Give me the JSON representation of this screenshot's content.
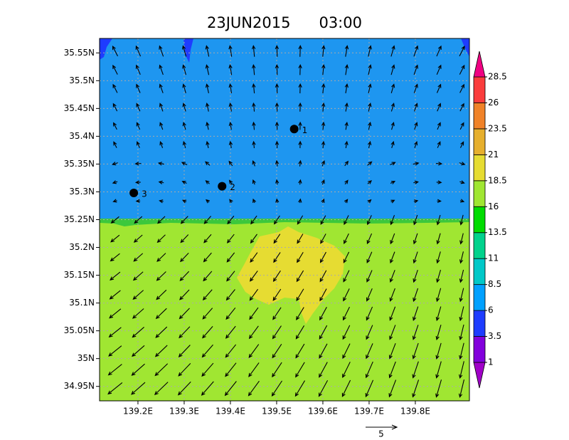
{
  "chart_data": {
    "type": "map",
    "title_date": "23JUN2015",
    "title_time": "03:00",
    "xlim": [
      139.117,
      139.917
    ],
    "ylim": [
      34.924,
      35.576
    ],
    "xticks": [
      {
        "value": 139.2,
        "label": "139.2E"
      },
      {
        "value": 139.3,
        "label": "139.3E"
      },
      {
        "value": 139.4,
        "label": "139.4E"
      },
      {
        "value": 139.5,
        "label": "139.5E"
      },
      {
        "value": 139.6,
        "label": "139.6E"
      },
      {
        "value": 139.7,
        "label": "139.7E"
      },
      {
        "value": 139.8,
        "label": "139.8E"
      }
    ],
    "yticks": [
      {
        "value": 34.95,
        "label": "34.95N"
      },
      {
        "value": 35.0,
        "label": "35N"
      },
      {
        "value": 35.05,
        "label": "35.05N"
      },
      {
        "value": 35.1,
        "label": "35.1N"
      },
      {
        "value": 35.15,
        "label": "35.15N"
      },
      {
        "value": 35.2,
        "label": "35.2N"
      },
      {
        "value": 35.25,
        "label": "35.25N"
      },
      {
        "value": 35.3,
        "label": "35.3N"
      },
      {
        "value": 35.35,
        "label": "35.35N"
      },
      {
        "value": 35.4,
        "label": "35.4N"
      },
      {
        "value": 35.45,
        "label": "35.45N"
      },
      {
        "value": 35.5,
        "label": "35.5N"
      },
      {
        "value": 35.55,
        "label": "35.55N"
      }
    ],
    "grid": true,
    "colorbar": {
      "levels": [
        1,
        3.5,
        6,
        8.5,
        11,
        13.5,
        16,
        18.5,
        21,
        23.5,
        26,
        28.5
      ],
      "colors": [
        "#a000c8",
        "#8200dc",
        "#1e3cff",
        "#00a0ff",
        "#00c8c8",
        "#00d28c",
        "#00dc00",
        "#a0e632",
        "#e6dc32",
        "#e6af2d",
        "#f08228",
        "#fa3c3c",
        "#f00082"
      ]
    },
    "stations": [
      {
        "label": "1",
        "lon": 139.538,
        "lat": 35.413
      },
      {
        "label": "2",
        "lon": 139.382,
        "lat": 35.31
      },
      {
        "label": "3",
        "lon": 139.191,
        "lat": 35.298
      }
    ],
    "vector_scale": 5
  }
}
